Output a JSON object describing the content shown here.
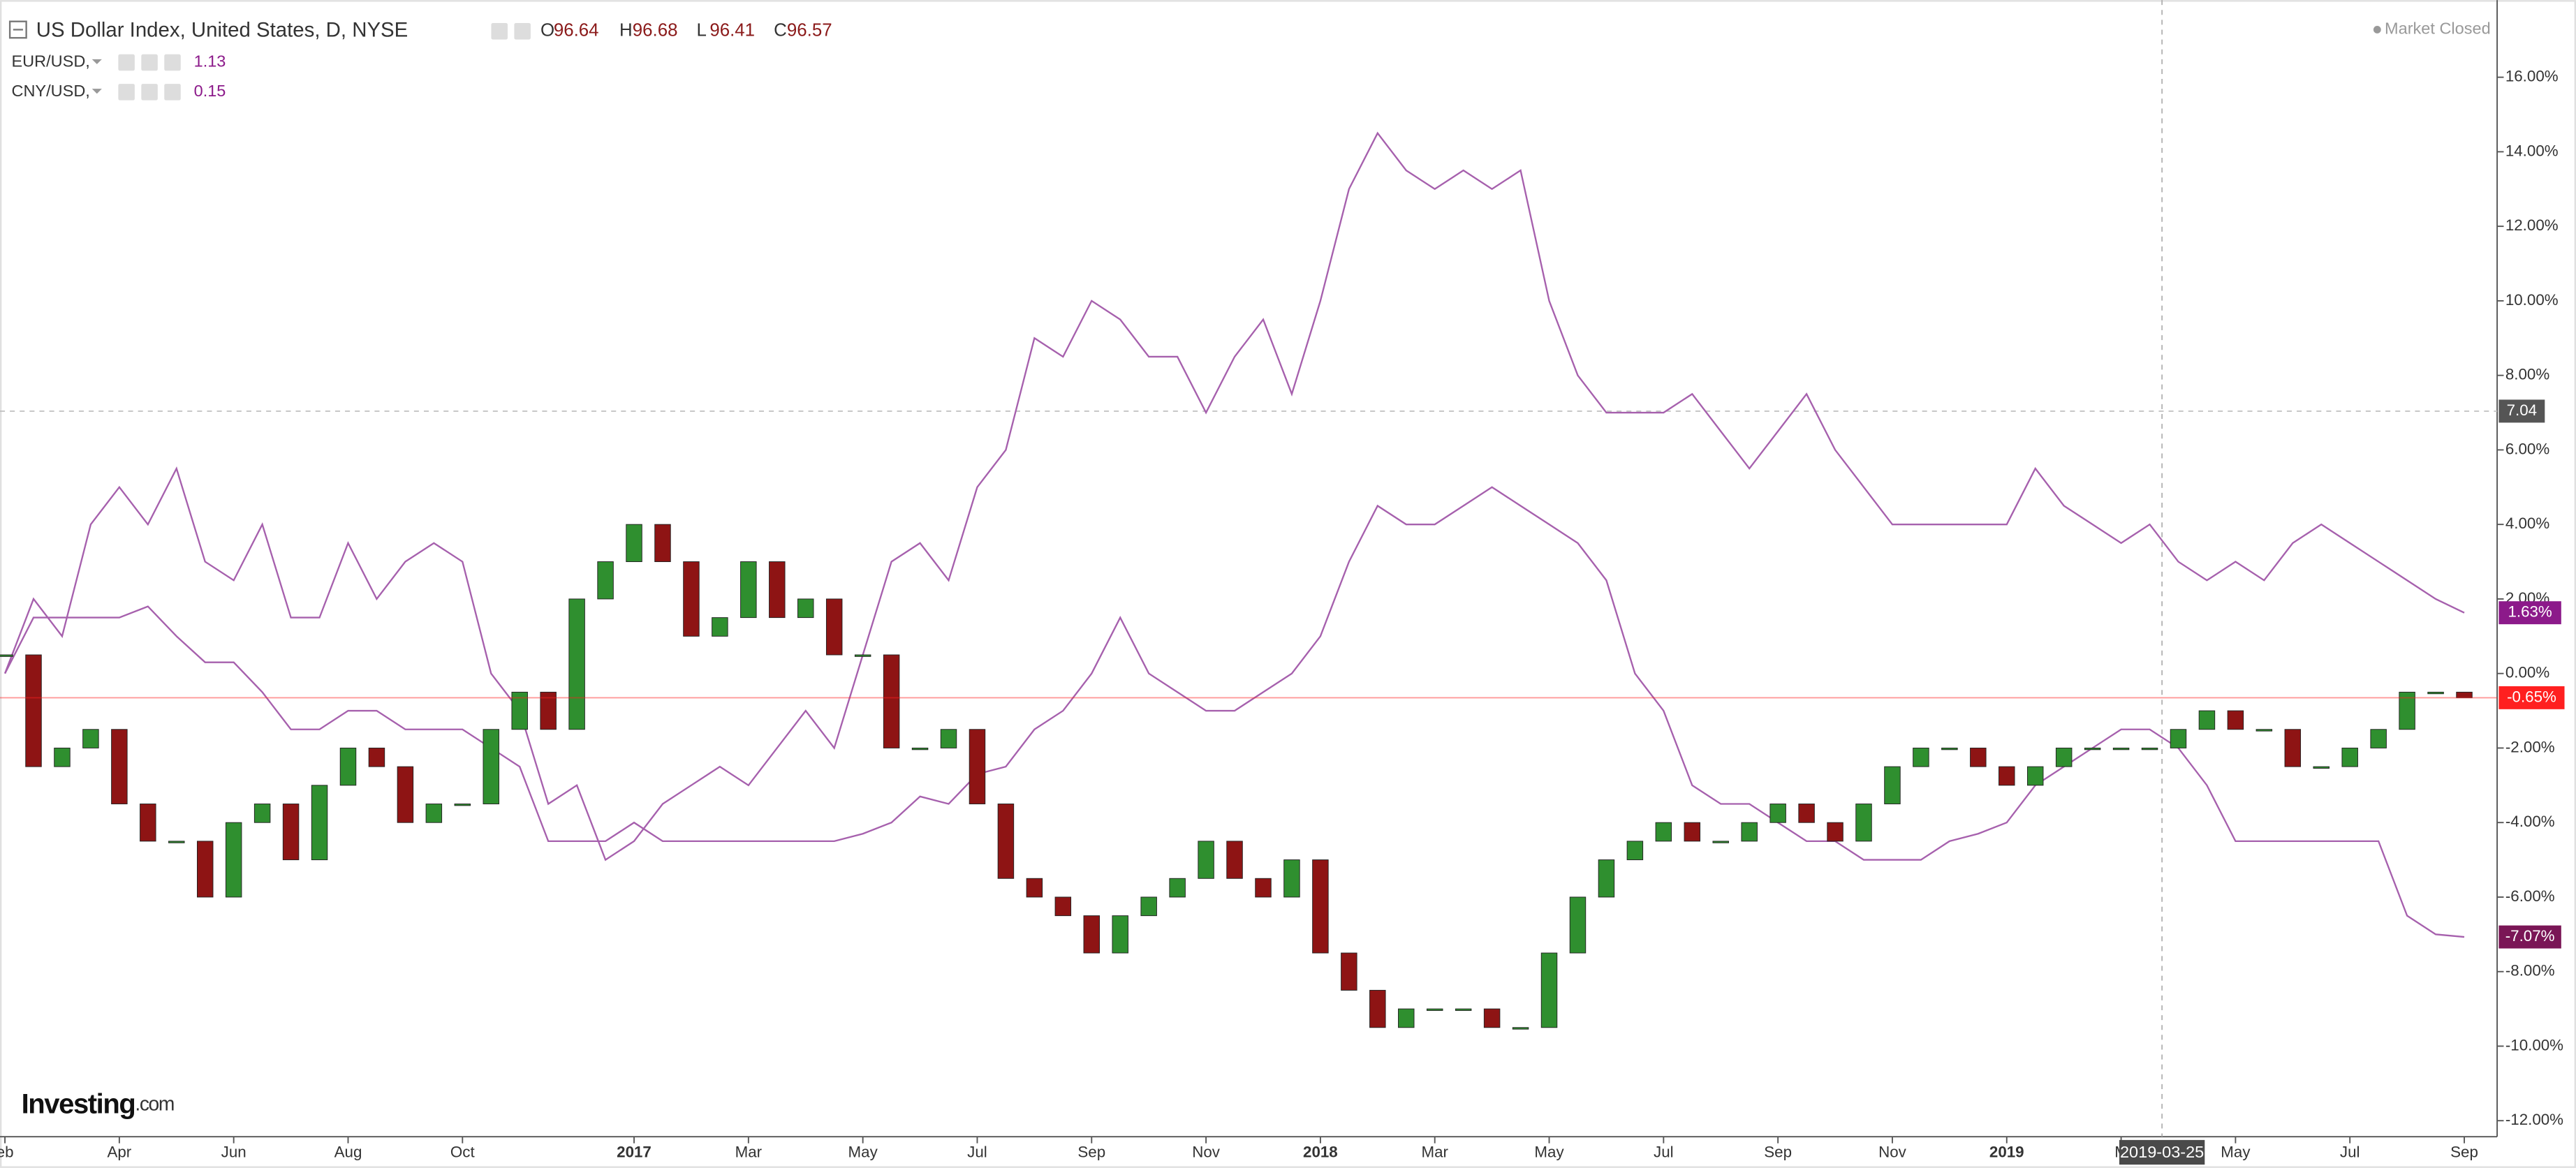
{
  "chart_data": {
    "type": "candlestick",
    "title": "US Dollar Index, United States, D, NYSE",
    "ohlc_labels": [
      "O",
      "H",
      "L",
      "C"
    ],
    "ohlc": [
      96.64,
      96.68,
      96.41,
      96.57
    ],
    "status": "Market Closed",
    "logo": [
      "Investing",
      ".com"
    ],
    "crosshair_label": "2019-03-25",
    "price_line": {
      "value": 7.04,
      "label": "7.04"
    },
    "categories": [
      "eb",
      null,
      null,
      null,
      "Apr",
      null,
      null,
      null,
      "Jun",
      null,
      null,
      null,
      "Aug",
      null,
      null,
      null,
      "Oct",
      null,
      null,
      null,
      null,
      null,
      "2017",
      null,
      null,
      null,
      "Mar",
      null,
      null,
      null,
      "May",
      null,
      null,
      null,
      "Jul",
      null,
      null,
      null,
      "Sep",
      null,
      null,
      null,
      "Nov",
      null,
      null,
      null,
      "2018",
      null,
      null,
      null,
      "Mar",
      null,
      null,
      null,
      "May",
      null,
      null,
      null,
      "Jul",
      null,
      null,
      null,
      "Sep",
      null,
      null,
      null,
      "Nov",
      null,
      null,
      null,
      "2019",
      null,
      null,
      null,
      "M",
      null,
      null,
      null,
      "May",
      null,
      null,
      null,
      "Jul",
      null,
      null,
      null,
      "Sep"
    ],
    "candles": {
      "up_color": "#2f8f2f",
      "down_color": "#8e1414",
      "last_label": "-0.65%",
      "last_color": "#ff2020",
      "values": [
        0.5,
        -2.5,
        -2,
        -1.5,
        -3.5,
        -4.5,
        -4.5,
        -6,
        -4,
        -3.5,
        -5,
        -3,
        -2,
        -2.5,
        -4,
        -3.5,
        -3.5,
        -1.5,
        -0.5,
        -1.5,
        2,
        3,
        4,
        3,
        1,
        1.5,
        3,
        1.5,
        2,
        0.5,
        0.5,
        -2,
        -2,
        -1.5,
        -3.5,
        -5.5,
        -6,
        -6.5,
        -7.5,
        -6.5,
        -6,
        -5.5,
        -4.5,
        -5.5,
        -6,
        -5,
        -7.5,
        -8.5,
        -9.5,
        -9,
        -9,
        -9,
        -9.5,
        -9.5,
        -7.5,
        -6,
        -5,
        -4.5,
        -4,
        -4.5,
        -4.5,
        -4,
        -3.5,
        -4,
        -4.5,
        -3.5,
        -2.5,
        -2,
        -2,
        -2.5,
        -3,
        -2.5,
        -2,
        -2,
        -2,
        -2,
        -1.5,
        -1,
        -1.5,
        -1.5,
        -2.5,
        -2.5,
        -2,
        -1.5,
        -0.5,
        -0.5,
        -0.65
      ]
    },
    "series": [
      {
        "name": "EUR/USD,",
        "legend_value": 1.13,
        "color": "#a660ad",
        "label_color": "#8c1a8a",
        "last_label": "1.63%",
        "values": [
          0,
          2,
          1,
          4,
          5,
          4,
          5.5,
          3,
          2.5,
          4,
          1.5,
          1.5,
          3.5,
          2,
          3,
          3.5,
          3,
          0,
          -1,
          -3.5,
          -3,
          -5,
          -4.5,
          -3.5,
          -3,
          -2.5,
          -3,
          -2,
          -1,
          -2,
          0.5,
          3,
          3.5,
          2.5,
          5,
          6,
          9,
          8.5,
          10,
          9.5,
          8.5,
          8.5,
          7,
          8.5,
          9.5,
          7.5,
          10,
          13,
          14.5,
          13.5,
          13,
          13.5,
          13,
          13.5,
          10,
          8,
          7,
          7,
          7,
          7.5,
          6.5,
          5.5,
          6.5,
          7.5,
          6,
          5,
          4,
          4,
          4,
          4,
          4,
          5.5,
          4.5,
          4,
          3.5,
          4,
          3,
          2.5,
          3,
          2.5,
          3.5,
          4,
          3.5,
          3,
          2.5,
          2,
          1.63
        ]
      },
      {
        "name": "CNY/USD,",
        "legend_value": 0.15,
        "color": "#a660ad",
        "label_color": "#7a1656",
        "last_label": "-7.07%",
        "values": [
          0,
          1.5,
          1.5,
          1.5,
          1.5,
          1.8,
          1,
          0.3,
          0.3,
          -0.5,
          -1.5,
          -1.5,
          -1,
          -1,
          -1.5,
          -1.5,
          -1.5,
          -2,
          -2.5,
          -4.5,
          -4.5,
          -4.5,
          -4,
          -4.5,
          -4.5,
          -4.5,
          -4.5,
          -4.5,
          -4.5,
          -4.5,
          -4.3,
          -4,
          -3.3,
          -3.5,
          -2.7,
          -2.5,
          -1.5,
          -1,
          0,
          1.5,
          0,
          -0.5,
          -1,
          -1,
          -0.5,
          0,
          1,
          3,
          4.5,
          4,
          4,
          4.5,
          5,
          4.5,
          4,
          3.5,
          2.5,
          0,
          -1,
          -3,
          -3.5,
          -3.5,
          -4,
          -4.5,
          -4.5,
          -5,
          -5,
          -5,
          -4.5,
          -4.3,
          -4,
          -3,
          -2.5,
          -2,
          -1.5,
          -1.5,
          -2,
          -3,
          -4.5,
          -4.5,
          -4.5,
          -4.5,
          -4.5,
          -4.5,
          -6.5,
          -7,
          -7.07
        ]
      }
    ],
    "ylim": [
      -12.43,
      17.85
    ],
    "yticks": [
      {
        "value": 16,
        "label": "16.00%"
      },
      {
        "value": 14,
        "label": "14.00%"
      },
      {
        "value": 12,
        "label": "12.00%"
      },
      {
        "value": 10,
        "label": "10.00%"
      },
      {
        "value": 8,
        "label": "8.00%"
      },
      {
        "value": 6,
        "label": "6.00%"
      },
      {
        "value": 4,
        "label": "4.00%"
      },
      {
        "value": 2,
        "label": "2.00%"
      },
      {
        "value": 0,
        "label": "0.00%"
      },
      {
        "value": -2,
        "label": "-2.00%"
      },
      {
        "value": -4,
        "label": "-4.00%"
      },
      {
        "value": -6,
        "label": "-6.00%"
      },
      {
        "value": -8,
        "label": "-8.00%"
      },
      {
        "value": -10,
        "label": "-10.00%"
      },
      {
        "value": -12,
        "label": "-12.00%"
      }
    ]
  }
}
